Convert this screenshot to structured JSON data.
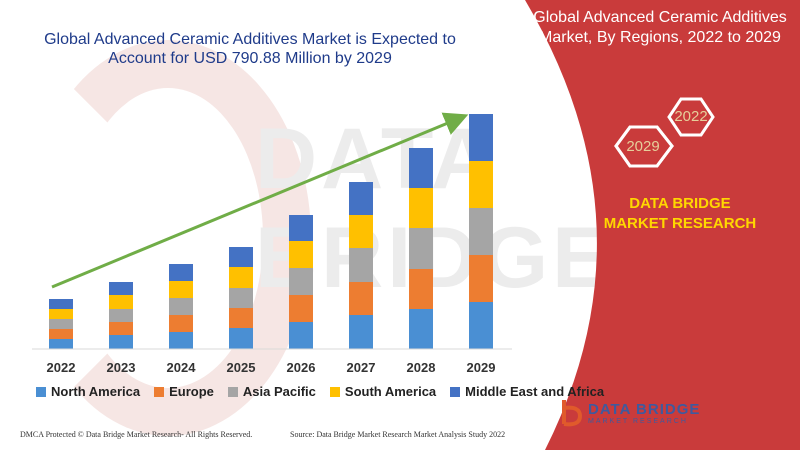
{
  "title": "Global Advanced Ceramic Additives Market is Expected to Account for USD 790.88 Million by 2029",
  "watermark_text": "DATA BRIDGE",
  "panel": {
    "title": "Global Advanced Ceramic Additives Market, By Regions, 2022 to 2029",
    "hex_top": "2022",
    "hex_bottom": "2029",
    "company": "DATA BRIDGE MARKET RESEARCH"
  },
  "logo": {
    "text": "DATA BRIDGE",
    "sub": "MARKET RESEARCH"
  },
  "footer": {
    "left": "DMCA Protected © Data Bridge Market Research- All Rights Reserved.",
    "right": "Source: Data Bridge Market Research Market Analysis Study 2022"
  },
  "colors": {
    "North America": "#4a8fd3",
    "Europe": "#ed7d31",
    "Asia Pacific": "#a5a5a5",
    "South America": "#ffc000",
    "Middle East and Africa": "#4472c4",
    "trend_arrow": "#70ad47",
    "panel_red": "#c93b3b"
  },
  "chart_data": {
    "type": "bar",
    "stacked": true,
    "categories": [
      "2022",
      "2023",
      "2024",
      "2025",
      "2026",
      "2027",
      "2028",
      "2029"
    ],
    "series": [
      {
        "name": "North America",
        "values": [
          10,
          14,
          17,
          21,
          27,
          34,
          40,
          47
        ]
      },
      {
        "name": "Europe",
        "values": [
          10,
          13,
          17,
          20,
          27,
          33,
          40,
          47
        ]
      },
      {
        "name": "Asia Pacific",
        "values": [
          10,
          13,
          17,
          20,
          27,
          34,
          41,
          47
        ]
      },
      {
        "name": "South America",
        "values": [
          10,
          14,
          17,
          21,
          27,
          33,
          40,
          47
        ]
      },
      {
        "name": "Middle East and Africa",
        "values": [
          10,
          13,
          17,
          20,
          26,
          33,
          40,
          47
        ]
      }
    ],
    "ylim": [
      0,
      235
    ],
    "trend_arrow": true,
    "legend_position": "bottom"
  }
}
